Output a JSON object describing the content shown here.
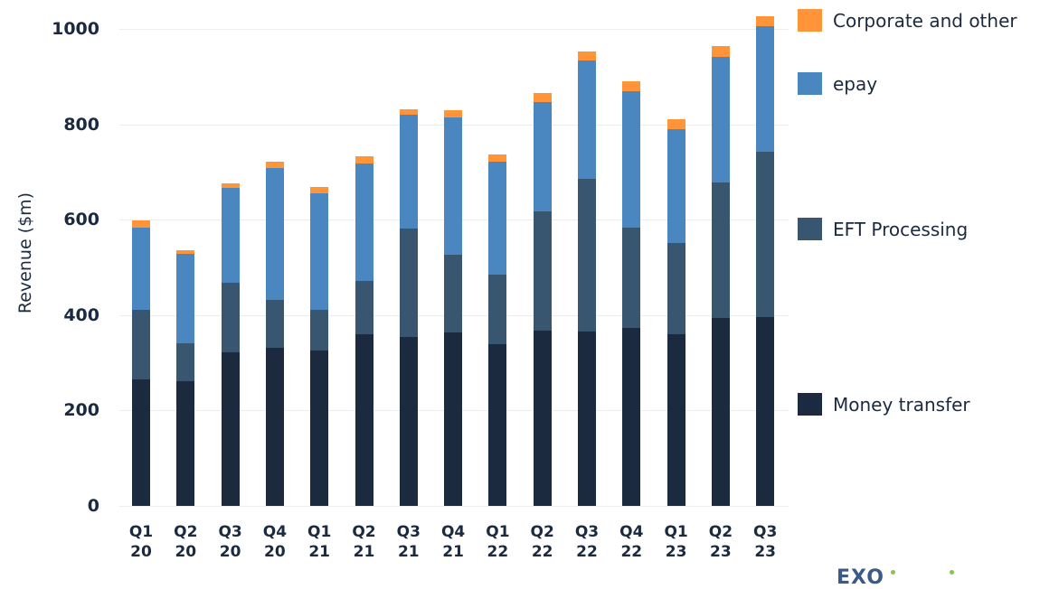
{
  "chart_data": {
    "type": "bar",
    "stacked": true,
    "title": "",
    "xlabel": "",
    "ylabel": "Revenue ($m)",
    "ylim": [
      0,
      1000
    ],
    "yticks": [
      0,
      200,
      400,
      600,
      800,
      1000
    ],
    "grid": true,
    "legend_position": "right",
    "categories": [
      "Q1 20",
      "Q2 20",
      "Q3 20",
      "Q4 20",
      "Q1 21",
      "Q2 21",
      "Q3 21",
      "Q4 21",
      "Q1 22",
      "Q2 22",
      "Q3 22",
      "Q4 22",
      "Q1 23",
      "Q2 23",
      "Q3 23"
    ],
    "series": [
      {
        "name": "Money transfer",
        "color": "#1b2a3f",
        "values": [
          265,
          261,
          322,
          331,
          326,
          360,
          354,
          364,
          339,
          367,
          365,
          373,
          360,
          394,
          396
        ]
      },
      {
        "name": "EFT Processing",
        "color": "#38566f",
        "values": [
          146,
          80,
          146,
          101,
          85,
          112,
          227,
          163,
          146,
          250,
          321,
          210,
          191,
          284,
          346
        ]
      },
      {
        "name": "epay",
        "color": "#4a87c0",
        "values": [
          172,
          187,
          199,
          276,
          244,
          246,
          239,
          287,
          237,
          230,
          248,
          286,
          239,
          263,
          264
        ]
      },
      {
        "name": "Corporate and other",
        "color": "#ff9538",
        "values": [
          15,
          8,
          9,
          13,
          13,
          15,
          11,
          15,
          15,
          19,
          19,
          21,
          21,
          23,
          21
        ]
      }
    ]
  },
  "axis": {
    "ylabel": "Revenue ($m)",
    "yticks": [
      "0",
      "200",
      "400",
      "600",
      "800",
      "1000"
    ],
    "xticks": [
      {
        "q": "Q1",
        "y": "20"
      },
      {
        "q": "Q2",
        "y": "20"
      },
      {
        "q": "Q3",
        "y": "20"
      },
      {
        "q": "Q4",
        "y": "20"
      },
      {
        "q": "Q1",
        "y": "21"
      },
      {
        "q": "Q2",
        "y": "21"
      },
      {
        "q": "Q3",
        "y": "21"
      },
      {
        "q": "Q4",
        "y": "21"
      },
      {
        "q": "Q1",
        "y": "22"
      },
      {
        "q": "Q2",
        "y": "22"
      },
      {
        "q": "Q3",
        "y": "22"
      },
      {
        "q": "Q4",
        "y": "22"
      },
      {
        "q": "Q1",
        "y": "23"
      },
      {
        "q": "Q2",
        "y": "23"
      },
      {
        "q": "Q3",
        "y": "23"
      }
    ]
  },
  "legend": [
    {
      "label": "Corporate and other",
      "color": "#ff9538"
    },
    {
      "label": "epay",
      "color": "#4a87c0"
    },
    {
      "label": "EFT Processing",
      "color": "#38566f"
    },
    {
      "label": "Money transfer",
      "color": "#1b2a3f"
    }
  ],
  "logo": {
    "text": "EXO"
  }
}
